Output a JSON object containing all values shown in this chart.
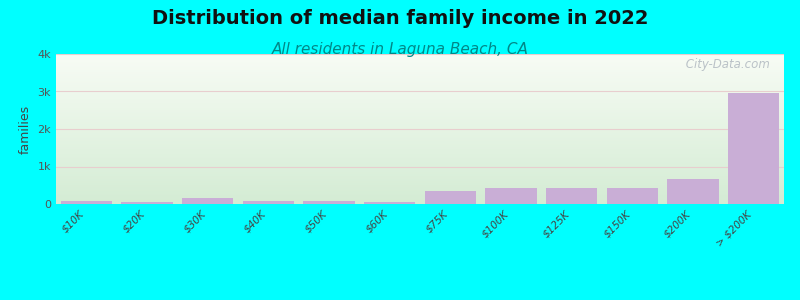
{
  "title": "Distribution of median family income in 2022",
  "subtitle": "All residents in Laguna Beach, CA",
  "title_fontsize": 14,
  "subtitle_fontsize": 11,
  "ylabel": "families",
  "categories": [
    "$10K",
    "$20K",
    "$30K",
    "$40K",
    "$50K",
    "$60K",
    "$75K",
    "$100K",
    "$125K",
    "$150K",
    "$200K",
    "> $200K"
  ],
  "values": [
    80,
    50,
    160,
    90,
    70,
    60,
    350,
    430,
    430,
    430,
    660,
    2960
  ],
  "bar_color": "#c9aed6",
  "background_color": "#00ffff",
  "plot_bg_top": "#f8f8f2",
  "plot_bg_bottom": "#d4ecd4",
  "ylim": [
    0,
    4000
  ],
  "yticks": [
    0,
    1000,
    2000,
    3000,
    4000
  ],
  "ytick_labels": [
    "0",
    "1k",
    "2k",
    "3k",
    "4k"
  ],
  "grid_color": "#e8cece",
  "watermark": " City-Data.com",
  "watermark_color": "#b0b8c0",
  "title_color": "#111111",
  "subtitle_color": "#008888"
}
